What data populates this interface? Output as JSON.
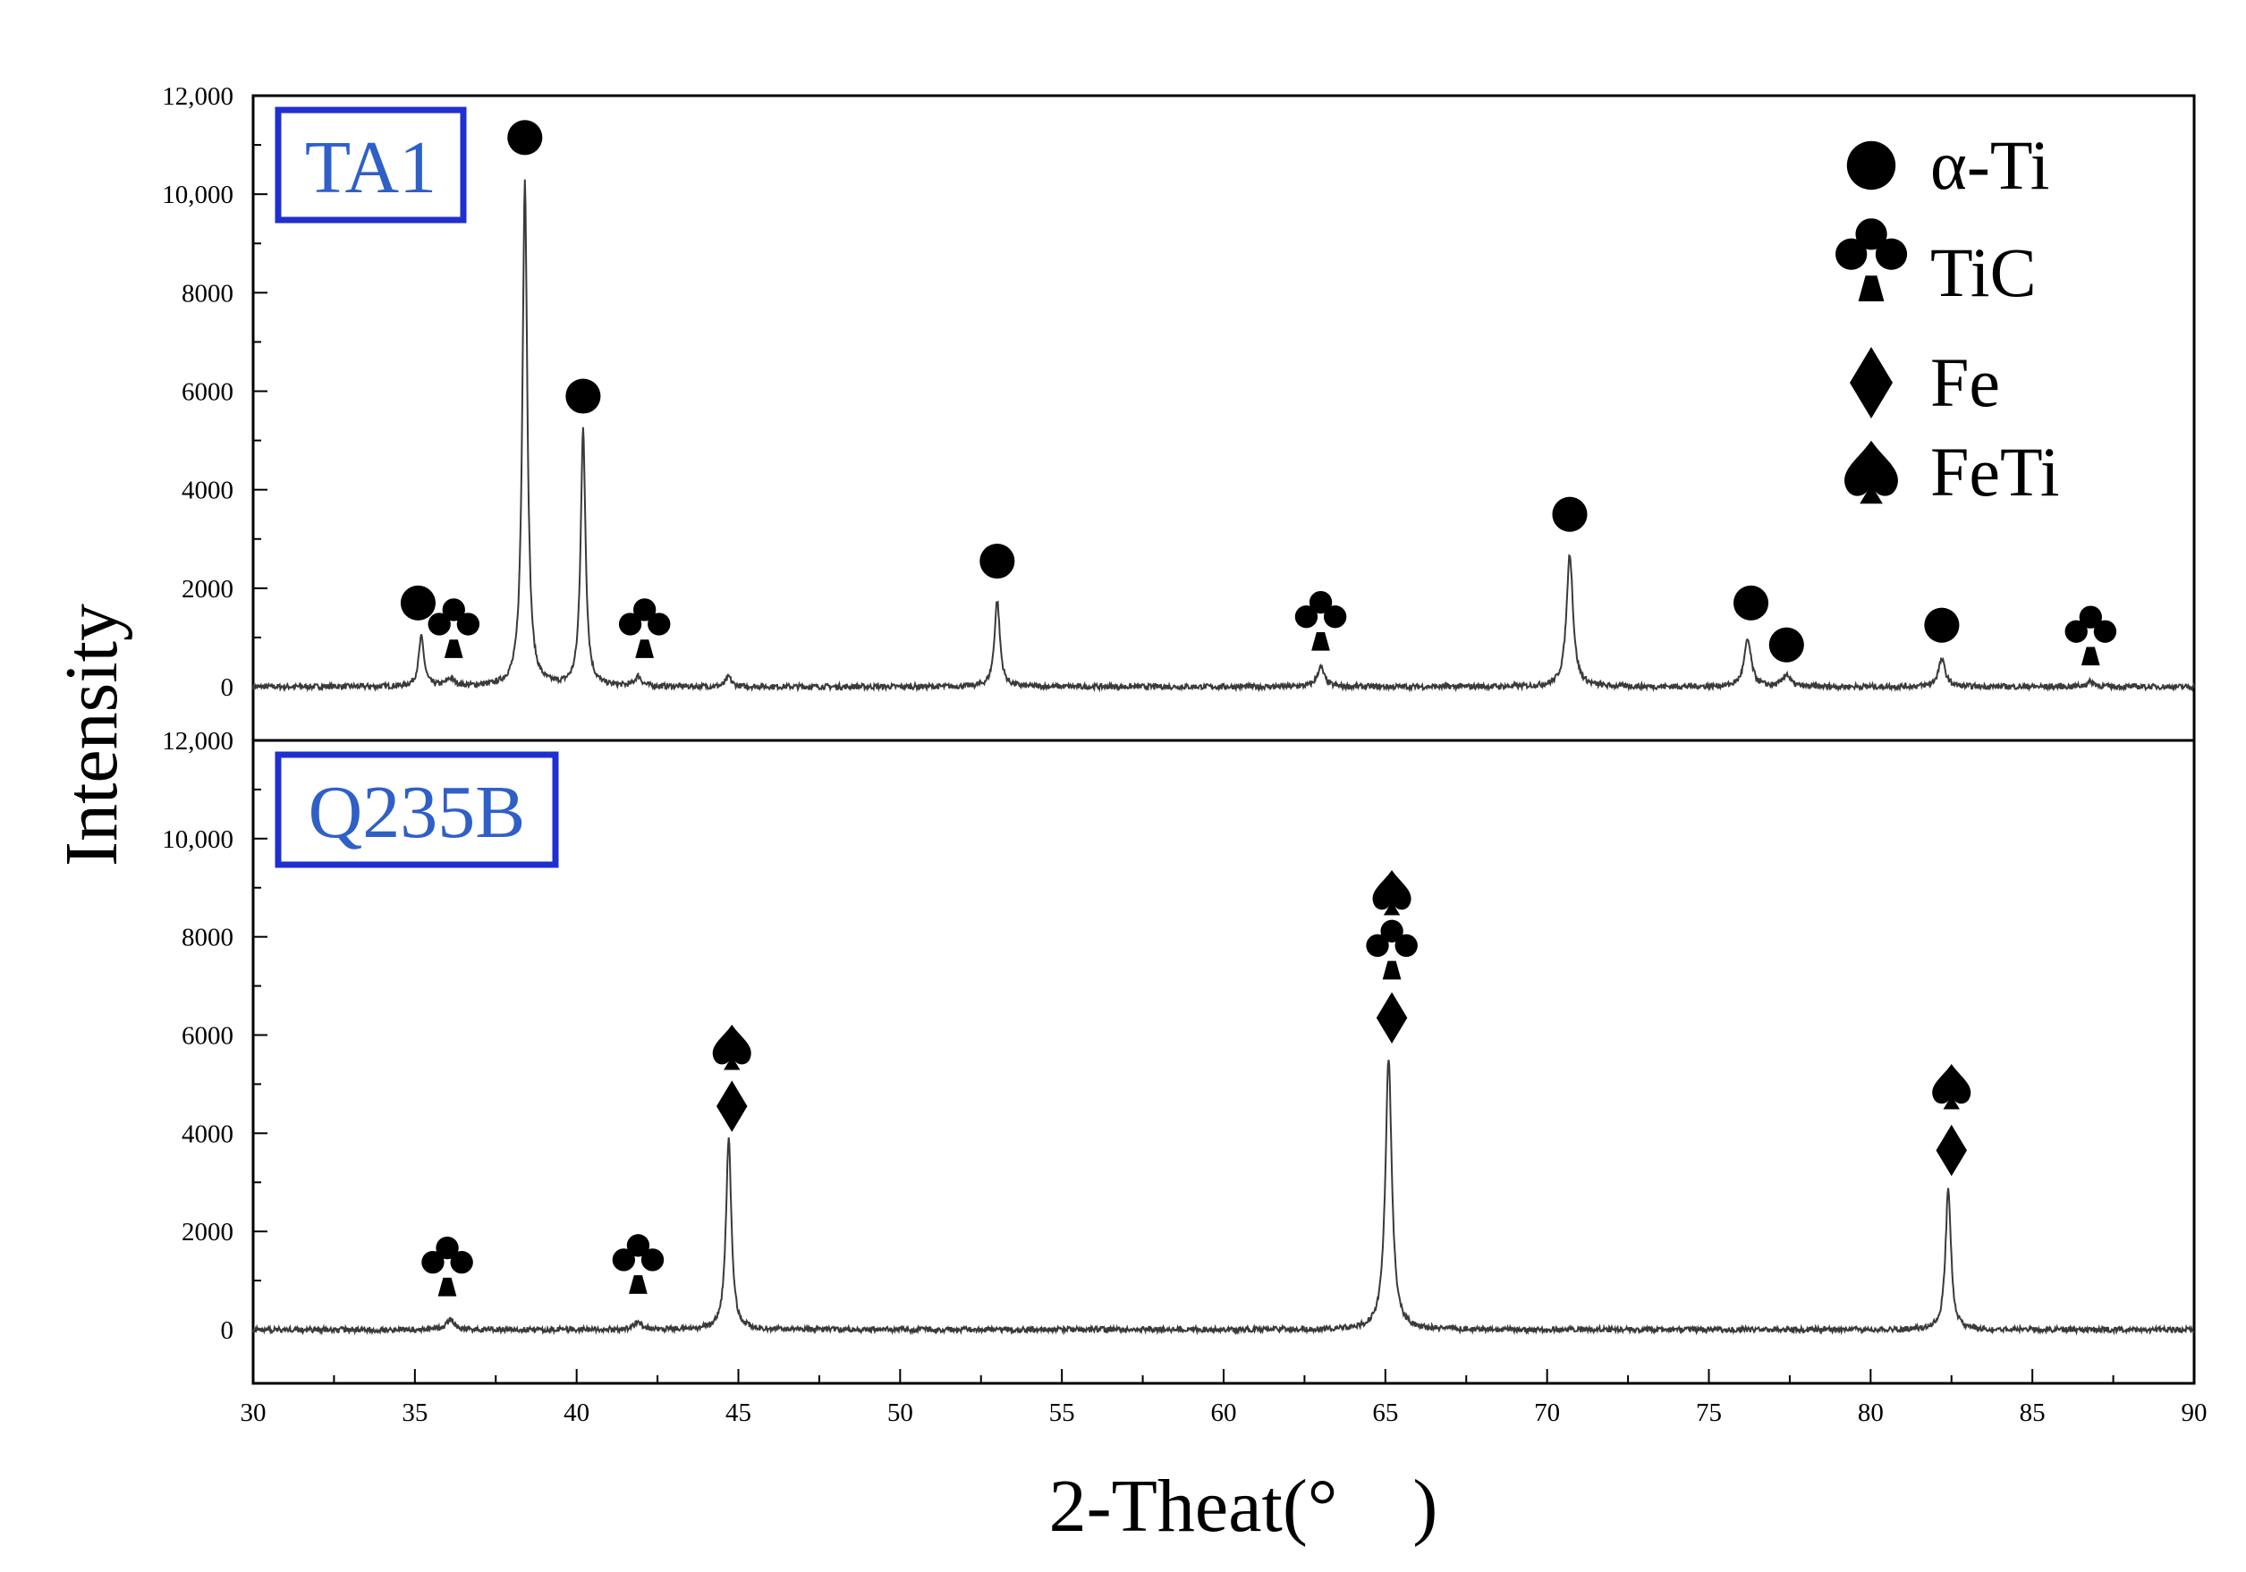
{
  "chart_data": {
    "type": "line",
    "xlabel": "2-Theat(°　)",
    "ylabel": "Intensity",
    "xlim": [
      30,
      90
    ],
    "x_ticks": [
      30,
      35,
      40,
      45,
      50,
      55,
      60,
      65,
      70,
      75,
      80,
      85,
      90
    ],
    "grid": false,
    "legend_position": "top-right",
    "legend": [
      {
        "symbol": "circle",
        "label": "α-Ti"
      },
      {
        "symbol": "club",
        "label": "TiC"
      },
      {
        "symbol": "diamond",
        "label": "Fe"
      },
      {
        "symbol": "spade",
        "label": "FeTi"
      }
    ],
    "panels": [
      {
        "name": "TA1",
        "ylim": [
          0,
          12000
        ],
        "y_ticks": [
          0,
          2000,
          4000,
          6000,
          8000,
          10000,
          12000
        ],
        "y_tick_labels": [
          "0",
          "2000",
          "4000",
          "6000",
          "8000",
          "10,000",
          "12,000"
        ],
        "baseline": 0,
        "peaks": [
          {
            "x": 35.2,
            "y": 1000,
            "w": 0.1
          },
          {
            "x": 36.1,
            "y": 150,
            "w": 0.15
          },
          {
            "x": 38.4,
            "y": 10300,
            "w": 0.09
          },
          {
            "x": 40.2,
            "y": 5200,
            "w": 0.09
          },
          {
            "x": 41.9,
            "y": 200,
            "w": 0.12
          },
          {
            "x": 44.7,
            "y": 200,
            "w": 0.1
          },
          {
            "x": 53.0,
            "y": 1750,
            "w": 0.1
          },
          {
            "x": 63.0,
            "y": 400,
            "w": 0.13
          },
          {
            "x": 70.7,
            "y": 2700,
            "w": 0.12
          },
          {
            "x": 76.2,
            "y": 950,
            "w": 0.13
          },
          {
            "x": 77.4,
            "y": 250,
            "w": 0.13
          },
          {
            "x": 82.2,
            "y": 550,
            "w": 0.13
          },
          {
            "x": 86.8,
            "y": 100,
            "w": 0.15
          }
        ],
        "markers": [
          {
            "symbol": "circle",
            "x": 35.1,
            "y": 1700
          },
          {
            "symbol": "club",
            "x": 36.2,
            "y": 1000
          },
          {
            "symbol": "circle",
            "x": 38.4,
            "y": 11150
          },
          {
            "symbol": "circle",
            "x": 40.2,
            "y": 5900
          },
          {
            "symbol": "club",
            "x": 42.1,
            "y": 1000
          },
          {
            "symbol": "circle",
            "x": 53.0,
            "y": 2550
          },
          {
            "symbol": "club",
            "x": 63.0,
            "y": 1150
          },
          {
            "symbol": "circle",
            "x": 70.7,
            "y": 3500
          },
          {
            "symbol": "circle",
            "x": 76.3,
            "y": 1700
          },
          {
            "symbol": "circle",
            "x": 77.4,
            "y": 850
          },
          {
            "symbol": "circle",
            "x": 82.2,
            "y": 1250
          },
          {
            "symbol": "club",
            "x": 86.8,
            "y": 850
          }
        ]
      },
      {
        "name": "Q235B",
        "ylim": [
          0,
          12000
        ],
        "y_ticks": [
          0,
          2000,
          4000,
          6000,
          8000,
          10000,
          12000
        ],
        "y_tick_labels": [
          "0",
          "2000",
          "4000",
          "6000",
          "8000",
          "10,000",
          "12,000"
        ],
        "baseline": 0,
        "peaks": [
          {
            "x": 36.1,
            "y": 200,
            "w": 0.15
          },
          {
            "x": 41.9,
            "y": 150,
            "w": 0.15
          },
          {
            "x": 44.7,
            "y": 3900,
            "w": 0.1
          },
          {
            "x": 65.1,
            "y": 5500,
            "w": 0.12
          },
          {
            "x": 82.4,
            "y": 2900,
            "w": 0.1
          }
        ],
        "markers": [
          {
            "symbol": "club",
            "x": 36.0,
            "y": 1100
          },
          {
            "symbol": "club",
            "x": 41.9,
            "y": 1150
          },
          {
            "symbol": "spade",
            "x": 44.8,
            "y": 5750
          },
          {
            "symbol": "diamond",
            "x": 44.8,
            "y": 4550
          },
          {
            "symbol": "spade",
            "x": 65.2,
            "y": 8900
          },
          {
            "symbol": "club",
            "x": 65.2,
            "y": 7550
          },
          {
            "symbol": "diamond",
            "x": 65.2,
            "y": 6350
          },
          {
            "symbol": "spade",
            "x": 82.5,
            "y": 4950
          },
          {
            "symbol": "diamond",
            "x": 82.5,
            "y": 3650
          }
        ]
      }
    ]
  }
}
